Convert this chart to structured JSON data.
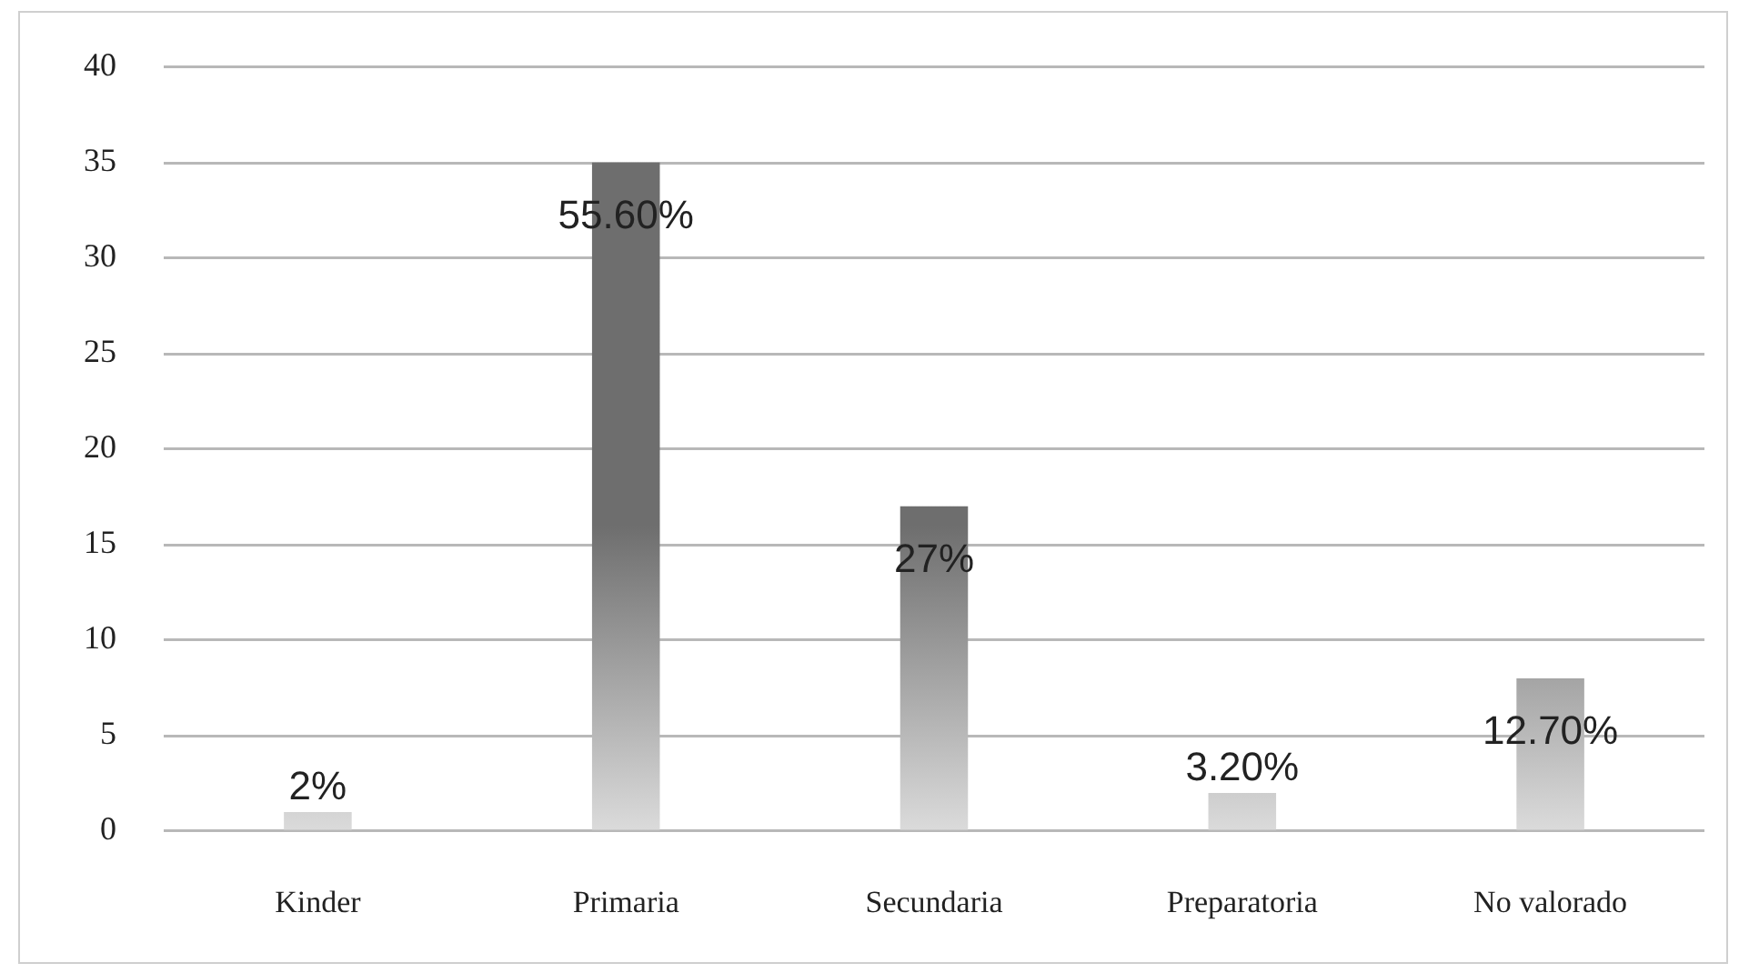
{
  "chart_data": {
    "type": "bar",
    "categories": [
      "Kinder",
      "Primaria",
      "Secundaria",
      "Preparatoria",
      "No valorado"
    ],
    "values": [
      1,
      35,
      17,
      2,
      8
    ],
    "color": "#6e6e6e",
    "annotations": [
      {
        "text": "2%",
        "x": "Kinder",
        "y": 1
      },
      {
        "text": "55.60%",
        "x": "Primaria",
        "y": 35
      },
      {
        "text": "27%",
        "x": "Secundaria",
        "y": 17
      },
      {
        "text": "3.20%",
        "x": "Preparatoria",
        "y": 2
      },
      {
        "text": "12.70%",
        "x": "No valorado",
        "y": 8
      }
    ],
    "ylim": [
      0,
      40
    ],
    "yticks": [
      0,
      5,
      10,
      15,
      20,
      25,
      30,
      35,
      40
    ],
    "grid": "y",
    "legend": false
  }
}
